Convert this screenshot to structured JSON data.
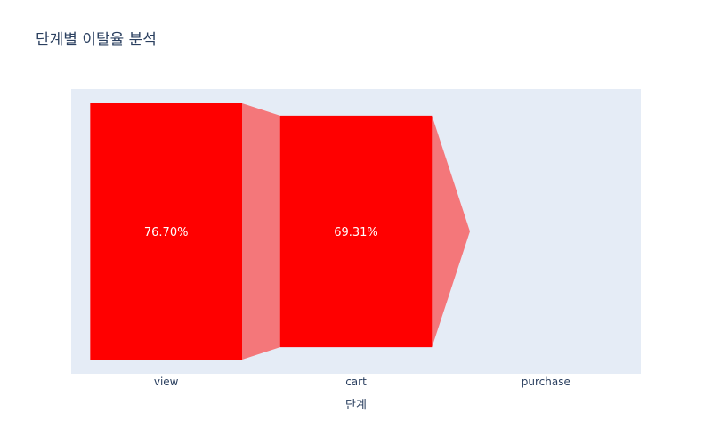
{
  "chart_data": {
    "type": "funnel",
    "title": "단계별 이탈율 분석",
    "xlabel": "단계",
    "ylabel": "",
    "categories": [
      "view",
      "cart",
      "purchase"
    ],
    "values": [
      76.7,
      69.31,
      0
    ],
    "text_labels": [
      "76.70%",
      "69.31%",
      ""
    ],
    "value_max": 76.7,
    "colors": {
      "bar": "#ff0000",
      "connector": "#f4777a",
      "plot_bg": "#e5ecf6",
      "text": "#2a3f5f",
      "label_text": "#ffffff"
    }
  }
}
